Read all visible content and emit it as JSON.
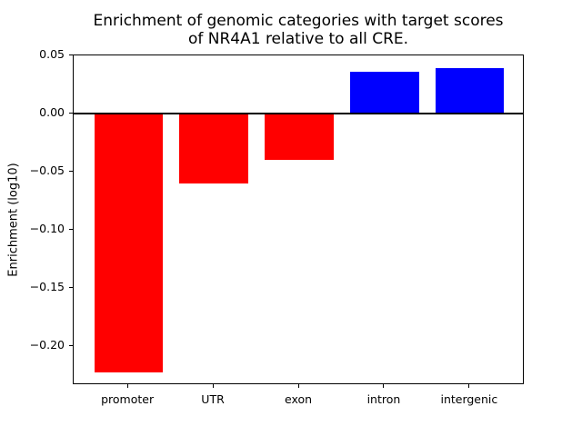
{
  "figure": {
    "background": "#ffffff",
    "title_line1": "Enrichment of genomic categories with target scores",
    "title_line2": "of NR4A1 relative to all CRE."
  },
  "chart_data": {
    "type": "bar",
    "title": "Enrichment of genomic categories with target scores of NR4A1 relative to all CRE.",
    "xlabel": "",
    "ylabel": "Enrichment (log10)",
    "categories": [
      "promoter",
      "UTR",
      "exon",
      "intron",
      "intergenic"
    ],
    "values": [
      -0.223,
      -0.06,
      -0.04,
      0.036,
      0.039
    ],
    "bar_colors": [
      "#ff0000",
      "#ff0000",
      "#ff0000",
      "#0000ff",
      "#0000ff"
    ],
    "negative_color": "#ff0000",
    "positive_color": "#0000ff",
    "bar_width": 0.8,
    "xlim": [
      -0.64,
      4.64
    ],
    "ylim": [
      -0.2336,
      0.0501
    ],
    "yticks": {
      "values": [
        0.05,
        0.0,
        -0.05,
        -0.1,
        -0.15,
        -0.2
      ],
      "labels": [
        "0.05",
        "0.00",
        "−0.05",
        "−0.10",
        "−0.15",
        "−0.20"
      ]
    },
    "zero_line": true,
    "grid": false,
    "legend": null,
    "axis_color": "#000000"
  }
}
